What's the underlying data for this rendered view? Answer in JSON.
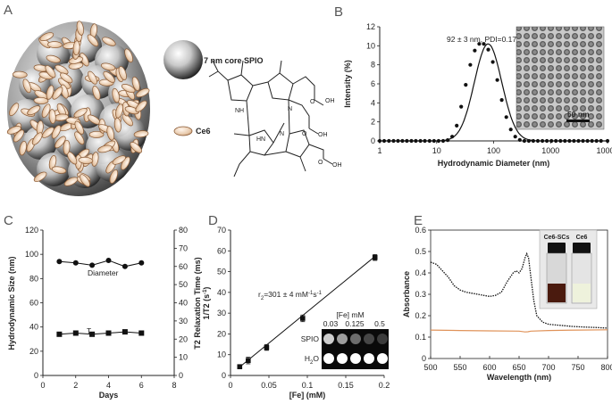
{
  "panels": {
    "a": "A",
    "b": "B",
    "c": "C",
    "d": "D",
    "e": "E"
  },
  "illustration": {
    "spio_label": "7 nm core SPIO",
    "ce6_label": "Ce6",
    "chem_atoms": {
      "nh1": "NH",
      "n1": "N",
      "hn": "HN",
      "n2": "N",
      "oh1": "OH",
      "oh2": "OH",
      "oh3": "OH",
      "o1": "O",
      "o2": "O",
      "o3": "O"
    }
  },
  "chart_data": [
    {
      "id": "B",
      "type": "line",
      "xscale": "log",
      "xlim": [
        1,
        10000
      ],
      "ylim": [
        0,
        12
      ],
      "xticks": [
        1,
        10,
        100,
        1000,
        10000
      ],
      "yticks": [
        0,
        2,
        4,
        6,
        8,
        10,
        12
      ],
      "xlabel": "Hydrodynamic Diameter (nm)",
      "ylabel": "Intensity (%)",
      "annotation": "92 ± 3 nm, PDI=0.17",
      "inset_scale": "50 nm",
      "peak": {
        "center": 80,
        "height": 10.2,
        "log_sigma": 0.24
      },
      "series": [
        {
          "x": [
            1,
            1.2,
            1.45,
            1.75,
            2.1,
            2.5,
            3,
            3.6,
            4.3,
            5.2,
            6.2,
            7.5,
            9,
            10.8,
            13,
            15.6,
            18.7,
            22.5,
            27,
            32.4,
            38.9,
            46.7,
            56,
            67.2,
            80.6,
            96.7,
            116,
            139,
            167,
            200,
            240,
            288,
            346,
            415,
            498,
            598,
            718,
            862,
            1034,
            1241,
            1489,
            1787,
            2144,
            2573,
            3088,
            3705,
            4446,
            5336,
            6403,
            7684,
            10000
          ],
          "y": [
            0,
            0,
            0,
            0,
            0,
            0,
            0,
            0,
            0,
            0,
            0,
            0,
            0,
            0,
            0,
            0.08,
            0.45,
            1.6,
            3.6,
            5.9,
            8.0,
            9.5,
            10.2,
            10.2,
            9.6,
            8.3,
            6.4,
            4.3,
            2.5,
            1.2,
            0.45,
            0.1,
            0,
            0,
            0,
            0,
            0,
            0,
            0,
            0,
            0,
            0,
            0,
            0,
            0,
            0,
            0,
            0,
            0,
            0,
            0
          ]
        }
      ]
    },
    {
      "id": "C",
      "type": "line",
      "xlim": [
        0,
        8
      ],
      "ylim": [
        0,
        120
      ],
      "y2lim": [
        0,
        80
      ],
      "xticks": [
        0,
        2,
        4,
        6,
        8
      ],
      "yticks": [
        0,
        20,
        40,
        60,
        80,
        100,
        120
      ],
      "y2ticks": [
        0,
        10,
        20,
        30,
        40,
        50,
        60,
        70,
        80
      ],
      "xlabel": "Days",
      "ylabel": "Hydrodynamic Size (nm)",
      "y2label": "T2 Relaxation Time (ms)",
      "series": [
        {
          "name": "Diameter",
          "x": [
            1,
            2,
            3,
            4,
            5,
            6
          ],
          "y": [
            94,
            93,
            91,
            95,
            90,
            93
          ],
          "axis": "left",
          "marker": "circle"
        },
        {
          "name": "T",
          "name_sub": "2",
          "x": [
            1,
            2,
            3,
            4,
            5,
            6
          ],
          "y": [
            34,
            35,
            34,
            35,
            36,
            35
          ],
          "axis": "left",
          "marker": "square"
        }
      ]
    },
    {
      "id": "D",
      "type": "scatter",
      "xlim": [
        0,
        0.2
      ],
      "ylim": [
        0,
        70
      ],
      "xticks": [
        0,
        0.05,
        0.1,
        0.15,
        0.2
      ],
      "yticks": [
        0,
        10,
        20,
        30,
        40,
        50,
        60,
        70
      ],
      "xlabel": "[Fe] (mM)",
      "ylabel": "1/T2 (s",
      "ylabel_sup": "-1",
      "ylabel_tail": ")",
      "annotation_parts": [
        "r",
        "2",
        "=301 ± 4 mM",
        "-1",
        "s",
        "-1"
      ],
      "fit": {
        "x": [
          0.01,
          0.188
        ],
        "y": [
          3.5,
          57.3
        ]
      },
      "series": [
        {
          "x": [
            0.012,
            0.023,
            0.047,
            0.094,
            0.188
          ],
          "y": [
            4.2,
            7.2,
            13.5,
            27.5,
            56.8
          ],
          "err": [
            1.0,
            1.6,
            1.4,
            1.6,
            1.4
          ]
        }
      ],
      "inset": {
        "title": "[Fe] mM",
        "columns": [
          "0.03",
          "0.125",
          "0.5"
        ],
        "rows": [
          {
            "label": "SPIO",
            "sub": "",
            "wells": [
              0.75,
              0.5,
              0.25,
              0.05,
              0.0
            ]
          },
          {
            "label": "H",
            "sub": "2",
            "tail": "O",
            "wells": [
              1.0,
              1.0,
              1.0,
              1.0,
              1.0
            ]
          }
        ]
      }
    },
    {
      "id": "E",
      "type": "line",
      "xlim": [
        500,
        800
      ],
      "ylim": [
        0,
        0.6
      ],
      "xticks": [
        500,
        550,
        600,
        650,
        700,
        750,
        800
      ],
      "yticks": [
        0,
        0.1,
        0.2,
        0.3,
        0.4,
        0.5,
        0.6
      ],
      "xlabel": "Wavelength (nm)",
      "ylabel": "Absorbance",
      "vial_labels": [
        "Ce6-SCs",
        "Ce6"
      ],
      "series": [
        {
          "name": "Ce6-SCs",
          "color": "#111111",
          "style": "dotted",
          "x": [
            500,
            510,
            520,
            530,
            540,
            550,
            560,
            570,
            580,
            590,
            600,
            610,
            620,
            630,
            640,
            645,
            650,
            655,
            660,
            663,
            666,
            670,
            675,
            680,
            690,
            700,
            720,
            740,
            760,
            780,
            800
          ],
          "y": [
            0.45,
            0.44,
            0.41,
            0.38,
            0.34,
            0.32,
            0.31,
            0.305,
            0.3,
            0.295,
            0.29,
            0.295,
            0.31,
            0.36,
            0.4,
            0.41,
            0.4,
            0.42,
            0.47,
            0.49,
            0.47,
            0.38,
            0.27,
            0.2,
            0.17,
            0.16,
            0.155,
            0.15,
            0.147,
            0.145,
            0.142
          ]
        },
        {
          "name": "Ce6",
          "color": "#e0935a",
          "style": "solid",
          "x": [
            500,
            550,
            600,
            650,
            660,
            665,
            670,
            700,
            750,
            800
          ],
          "y": [
            0.133,
            0.131,
            0.129,
            0.128,
            0.124,
            0.125,
            0.128,
            0.131,
            0.133,
            0.134
          ]
        }
      ]
    }
  ]
}
